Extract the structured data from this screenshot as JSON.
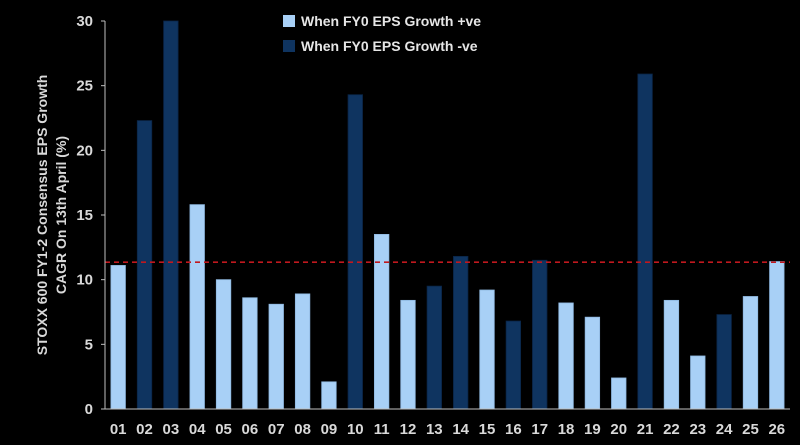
{
  "chart_data": {
    "type": "bar",
    "title": "",
    "xlabel": "",
    "ylabel_lines": [
      "STOXX 600 FY1-2 Consensus EPS Growth",
      "CAGR On 13th April (%)"
    ],
    "ylim": [
      0,
      30
    ],
    "yticks": [
      0,
      5,
      10,
      15,
      20,
      25,
      30
    ],
    "categories": [
      "01",
      "02",
      "03",
      "04",
      "05",
      "06",
      "07",
      "08",
      "09",
      "10",
      "11",
      "12",
      "13",
      "14",
      "15",
      "16",
      "17",
      "18",
      "19",
      "20",
      "21",
      "22",
      "23",
      "24",
      "25",
      "26"
    ],
    "values": [
      11.1,
      22.3,
      30.0,
      15.8,
      10.0,
      8.6,
      8.1,
      8.9,
      2.1,
      24.3,
      13.5,
      8.4,
      9.5,
      11.8,
      9.2,
      6.8,
      11.5,
      8.2,
      7.1,
      2.4,
      25.9,
      8.4,
      4.1,
      7.3,
      8.7,
      11.4
    ],
    "sign": [
      "pos",
      "neg",
      "neg",
      "pos",
      "pos",
      "pos",
      "pos",
      "pos",
      "pos",
      "neg",
      "pos",
      "pos",
      "neg",
      "neg",
      "pos",
      "neg",
      "neg",
      "pos",
      "pos",
      "pos",
      "neg",
      "pos",
      "pos",
      "neg",
      "pos",
      "pos"
    ],
    "reference_line": {
      "value": 11.35,
      "style": "dashed",
      "color": "#c0181e"
    },
    "legend": [
      {
        "key": "pos",
        "label": "When FY0 EPS Growth +ve",
        "color": "#a8d0f6"
      },
      {
        "key": "neg",
        "label": "When FY0 EPS Growth -ve",
        "color": "#0f3460"
      }
    ],
    "legend_position": "top-center"
  }
}
